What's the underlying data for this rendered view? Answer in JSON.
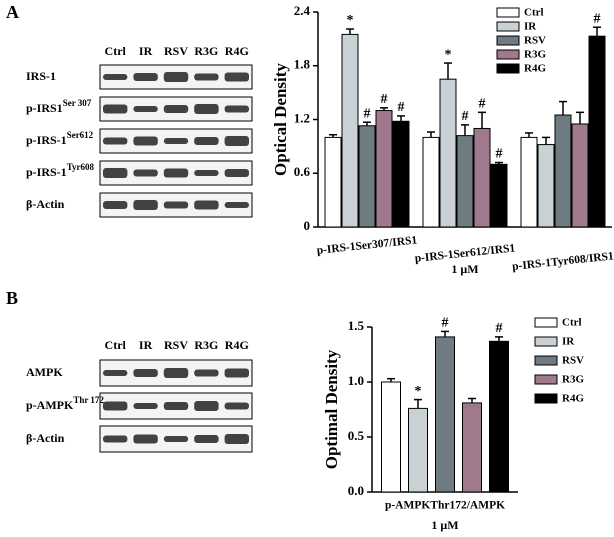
{
  "panels": [
    "A",
    "B"
  ],
  "blots": [
    {
      "lanes": [
        "Ctrl",
        "IR",
        "RSV",
        "R3G",
        "R4G"
      ],
      "rows": [
        {
          "name": "IRS-1"
        },
        {
          "name": "p-IRS1",
          "sup": "Ser 307"
        },
        {
          "name": "p-IRS-1",
          "sup": "Ser612"
        },
        {
          "name": "p-IRS-1",
          "sup": "Tyr608"
        },
        {
          "name": "β-Actin"
        }
      ]
    },
    {
      "lanes": [
        "Ctrl",
        "IR",
        "RSV",
        "R3G",
        "R4G"
      ],
      "rows": [
        {
          "name": "AMPK"
        },
        {
          "name": "p-AMPK",
          "sup": "Thr 172"
        },
        {
          "name": "β-Actin"
        }
      ]
    }
  ],
  "chart_data": [
    {
      "type": "bar",
      "ylabel": "Optical Density",
      "xlabel": "1 μM",
      "categories": [
        "p-IRS-1Ser307/IRS1",
        "p-IRS-1Ser612/IRS1",
        "p-IRS-1Tyr608/IRS1"
      ],
      "ylim": [
        0,
        2.4
      ],
      "yticks": [
        0,
        0.6,
        1.2,
        1.8,
        2.4
      ],
      "legend": "upper right",
      "series": [
        {
          "name": "Ctrl",
          "color": "#ffffff",
          "values": [
            1.0,
            1.0,
            1.0
          ],
          "errors": [
            0.03,
            0.06,
            0.05
          ],
          "signs": [
            null,
            null,
            null
          ]
        },
        {
          "name": "IR",
          "color": "#c9d1d5",
          "values": [
            2.15,
            1.65,
            0.92
          ],
          "errors": [
            0.06,
            0.18,
            0.08
          ],
          "signs": [
            "*",
            "*",
            null
          ]
        },
        {
          "name": "RSV",
          "color": "#6e7c82",
          "values": [
            1.13,
            1.02,
            1.25
          ],
          "errors": [
            0.04,
            0.12,
            0.15
          ],
          "signs": [
            "#",
            "#",
            null
          ]
        },
        {
          "name": "R3G",
          "color": "#a07a8c",
          "values": [
            1.3,
            1.1,
            1.15
          ],
          "errors": [
            0.03,
            0.18,
            0.13
          ],
          "signs": [
            "#",
            "#",
            null
          ]
        },
        {
          "name": "R4G",
          "color": "#000000",
          "values": [
            1.18,
            0.7,
            2.13
          ],
          "errors": [
            0.06,
            0.02,
            0.1
          ],
          "signs": [
            "#",
            "#",
            "#"
          ]
        }
      ]
    },
    {
      "type": "bar",
      "ylabel": "Optimal Density",
      "xlabel": "1 μM",
      "categories": [
        "p-AMPKThr172/AMPK"
      ],
      "ylim": [
        0,
        1.5
      ],
      "yticks": [
        {
          "value": 0,
          "label": "0.0"
        },
        {
          "value": 0.5,
          "label": "0.5"
        },
        {
          "value": 1,
          "label": "1.0"
        },
        {
          "value": 1.5,
          "label": "1.5"
        }
      ],
      "legend": "right",
      "series": [
        {
          "name": "Ctrl",
          "color": "#ffffff",
          "values": [
            1.0
          ],
          "errors": [
            0.03
          ],
          "signs": [
            null
          ]
        },
        {
          "name": "IR",
          "color": "#c9d1d5",
          "values": [
            0.76
          ],
          "errors": [
            0.08
          ],
          "signs": [
            "*"
          ]
        },
        {
          "name": "RSV",
          "color": "#6e7c82",
          "values": [
            1.41
          ],
          "errors": [
            0.05
          ],
          "signs": [
            "#"
          ]
        },
        {
          "name": "R3G",
          "color": "#a07a8c",
          "values": [
            0.81
          ],
          "errors": [
            0.04
          ],
          "signs": [
            null
          ]
        },
        {
          "name": "R4G",
          "color": "#000000",
          "values": [
            1.37
          ],
          "errors": [
            0.04
          ],
          "signs": [
            "#"
          ]
        }
      ]
    }
  ]
}
